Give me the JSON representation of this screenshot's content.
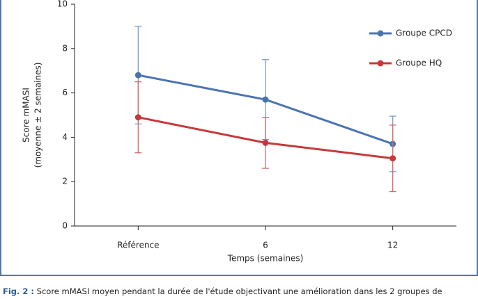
{
  "chart_data": {
    "type": "line",
    "categories": [
      "Référence",
      "6",
      "12"
    ],
    "series": [
      {
        "name": "Groupe CPCD",
        "color": "#4a74b0",
        "error_color": "#7b9ccc",
        "values": [
          6.8,
          5.7,
          3.7
        ],
        "errors": [
          2.2,
          1.8,
          1.25
        ]
      },
      {
        "name": "Groupe HQ",
        "color": "#c8383a",
        "error_color": "#d46a6b",
        "values": [
          4.9,
          3.75,
          3.05
        ],
        "errors": [
          1.6,
          1.15,
          1.5
        ]
      }
    ],
    "ylim": [
      0,
      10
    ],
    "yticks": [
      0,
      2,
      4,
      6,
      8,
      10
    ],
    "y_label": [
      "Score mMASI",
      "(moyenne ± 2 semaines)"
    ],
    "x_label": "Temps (semaines)",
    "legend": "top-right"
  },
  "caption": {
    "label": "Fig. 2 :",
    "text": "Score mMASI moyen pendant la durée de l'étude objectivant une amélioration dans les 2 groupes de"
  }
}
